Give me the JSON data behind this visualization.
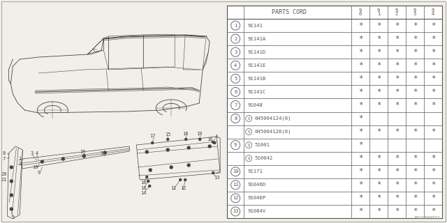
{
  "bg_color": "#f2efe9",
  "diagram_code": "A915B00032",
  "table": {
    "rows": [
      {
        "num": "1",
        "part": "91141",
        "prefix": null,
        "marks": [
          true,
          true,
          true,
          true,
          true
        ]
      },
      {
        "num": "2",
        "part": "91141A",
        "prefix": null,
        "marks": [
          true,
          true,
          true,
          true,
          true
        ]
      },
      {
        "num": "3",
        "part": "91141D",
        "prefix": null,
        "marks": [
          true,
          true,
          true,
          true,
          true
        ]
      },
      {
        "num": "4",
        "part": "91141E",
        "prefix": null,
        "marks": [
          true,
          true,
          true,
          true,
          true
        ]
      },
      {
        "num": "5",
        "part": "91141B",
        "prefix": null,
        "marks": [
          true,
          true,
          true,
          true,
          true
        ]
      },
      {
        "num": "6",
        "part": "91141C",
        "prefix": null,
        "marks": [
          true,
          true,
          true,
          true,
          true
        ]
      },
      {
        "num": "7",
        "part": "91048",
        "prefix": null,
        "marks": [
          true,
          true,
          true,
          true,
          true
        ]
      },
      {
        "num": "8",
        "part": "045004124(6)",
        "prefix": "S",
        "marks": [
          true,
          false,
          false,
          false,
          false
        ]
      },
      {
        "num": null,
        "part": "045004126(6)",
        "prefix": "S",
        "marks": [
          true,
          true,
          true,
          true,
          true
        ]
      },
      {
        "num": "9",
        "part": "51001",
        "prefix": "Q",
        "marks": [
          true,
          false,
          false,
          false,
          false
        ]
      },
      {
        "num": null,
        "part": "510042",
        "prefix": "Q",
        "marks": [
          true,
          true,
          true,
          true,
          true
        ]
      },
      {
        "num": "10",
        "part": "91171",
        "prefix": null,
        "marks": [
          true,
          true,
          true,
          true,
          true
        ]
      },
      {
        "num": "11",
        "part": "91046D",
        "prefix": null,
        "marks": [
          true,
          true,
          true,
          true,
          true
        ]
      },
      {
        "num": "12",
        "part": "91046P",
        "prefix": null,
        "marks": [
          true,
          true,
          true,
          true,
          true
        ]
      },
      {
        "num": "13",
        "part": "91084V",
        "prefix": null,
        "marks": [
          true,
          true,
          true,
          true,
          true
        ]
      }
    ]
  }
}
